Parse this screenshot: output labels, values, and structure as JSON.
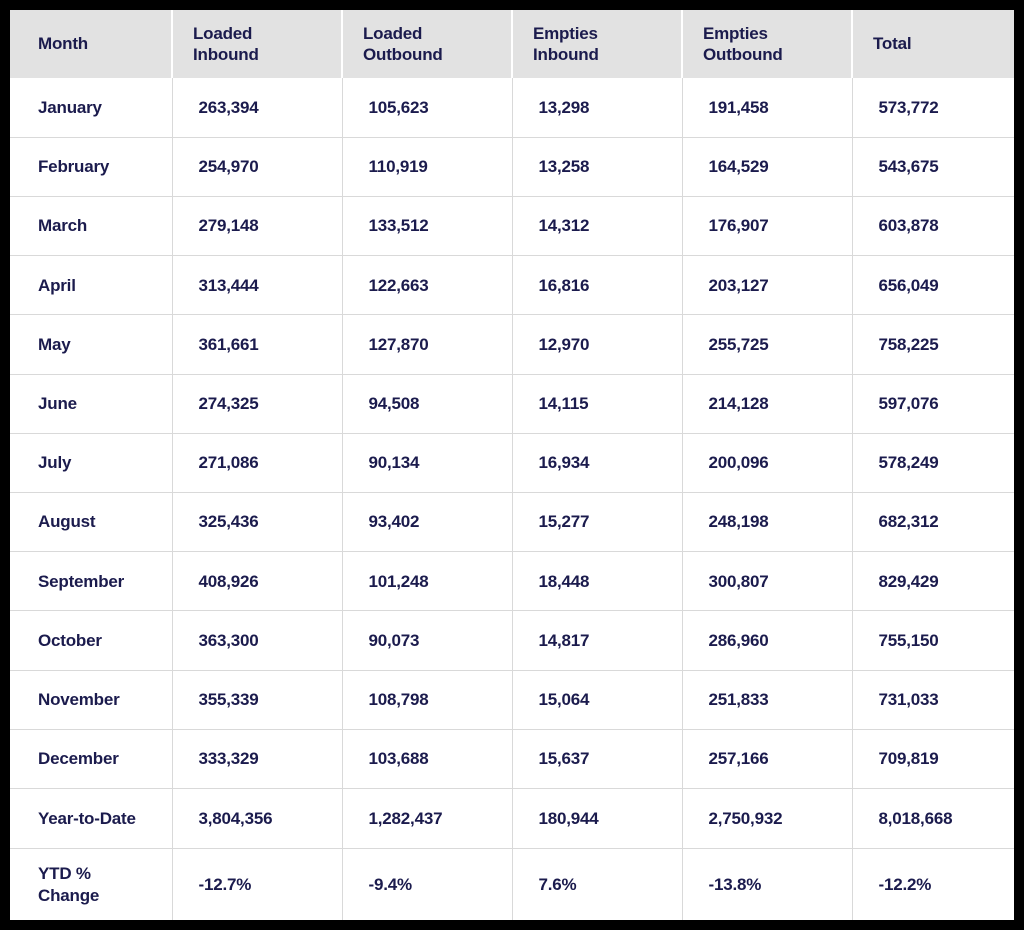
{
  "colors": {
    "page_background": "#000000",
    "table_background": "#ffffff",
    "header_background": "#e2e2e2",
    "header_separator": "#ffffff",
    "row_separator": "#d9d9d9",
    "text": "#1b1b4d"
  },
  "table": {
    "columns": [
      "Month",
      "Loaded\nInbound",
      "Loaded\nOutbound",
      "Empties\nInbound",
      "Empties\nOutbound",
      "Total"
    ],
    "rows": [
      {
        "label": "January",
        "values": [
          "263,394",
          "105,623",
          "13,298",
          "191,458",
          "573,772"
        ]
      },
      {
        "label": "February",
        "values": [
          "254,970",
          "110,919",
          "13,258",
          "164,529",
          "543,675"
        ]
      },
      {
        "label": "March",
        "values": [
          "279,148",
          "133,512",
          "14,312",
          "176,907",
          "603,878"
        ]
      },
      {
        "label": "April",
        "values": [
          "313,444",
          "122,663",
          "16,816",
          "203,127",
          "656,049"
        ]
      },
      {
        "label": "May",
        "values": [
          "361,661",
          "127,870",
          "12,970",
          "255,725",
          "758,225"
        ]
      },
      {
        "label": "June",
        "values": [
          "274,325",
          "94,508",
          "14,115",
          "214,128",
          "597,076"
        ]
      },
      {
        "label": "July",
        "values": [
          "271,086",
          "90,134",
          "16,934",
          "200,096",
          "578,249"
        ]
      },
      {
        "label": "August",
        "values": [
          "325,436",
          "93,402",
          "15,277",
          "248,198",
          "682,312"
        ]
      },
      {
        "label": "September",
        "values": [
          "408,926",
          "101,248",
          "18,448",
          "300,807",
          "829,429"
        ]
      },
      {
        "label": "October",
        "values": [
          "363,300",
          "90,073",
          "14,817",
          "286,960",
          "755,150"
        ]
      },
      {
        "label": "November",
        "values": [
          "355,339",
          "108,798",
          "15,064",
          "251,833",
          "731,033"
        ]
      },
      {
        "label": "December",
        "values": [
          "333,329",
          "103,688",
          "15,637",
          "257,166",
          "709,819"
        ]
      },
      {
        "label": "Year-to-Date",
        "values": [
          "3,804,356",
          "1,282,437",
          "180,944",
          "2,750,932",
          "8,018,668"
        ]
      },
      {
        "label": "YTD %\nChange",
        "values": [
          "-12.7%",
          "-9.4%",
          "7.6%",
          "-13.8%",
          "-12.2%"
        ]
      }
    ]
  },
  "chart_data": {
    "type": "table",
    "categories": [
      "January",
      "February",
      "March",
      "April",
      "May",
      "June",
      "July",
      "August",
      "September",
      "October",
      "November",
      "December"
    ],
    "series": [
      {
        "name": "Loaded Inbound",
        "values": [
          263394,
          254970,
          279148,
          313444,
          361661,
          274325,
          271086,
          325436,
          408926,
          363300,
          355339,
          333329
        ]
      },
      {
        "name": "Loaded Outbound",
        "values": [
          105623,
          110919,
          133512,
          122663,
          127870,
          94508,
          90134,
          93402,
          101248,
          90073,
          108798,
          103688
        ]
      },
      {
        "name": "Empties Inbound",
        "values": [
          13298,
          13258,
          14312,
          16816,
          12970,
          14115,
          16934,
          15277,
          18448,
          14817,
          15064,
          15637
        ]
      },
      {
        "name": "Empties Outbound",
        "values": [
          191458,
          164529,
          176907,
          203127,
          255725,
          214128,
          200096,
          248198,
          300807,
          286960,
          251833,
          257166
        ]
      },
      {
        "name": "Total",
        "values": [
          573772,
          543675,
          603878,
          656049,
          758225,
          597076,
          578249,
          682312,
          829429,
          755150,
          731033,
          709819
        ]
      }
    ],
    "year_to_date": {
      "Loaded Inbound": 3804356,
      "Loaded Outbound": 1282437,
      "Empties Inbound": 180944,
      "Empties Outbound": 2750932,
      "Total": 8018668
    },
    "ytd_percent_change": {
      "Loaded Inbound": -12.7,
      "Loaded Outbound": -9.4,
      "Empties Inbound": 7.6,
      "Empties Outbound": -13.8,
      "Total": -12.2
    }
  }
}
